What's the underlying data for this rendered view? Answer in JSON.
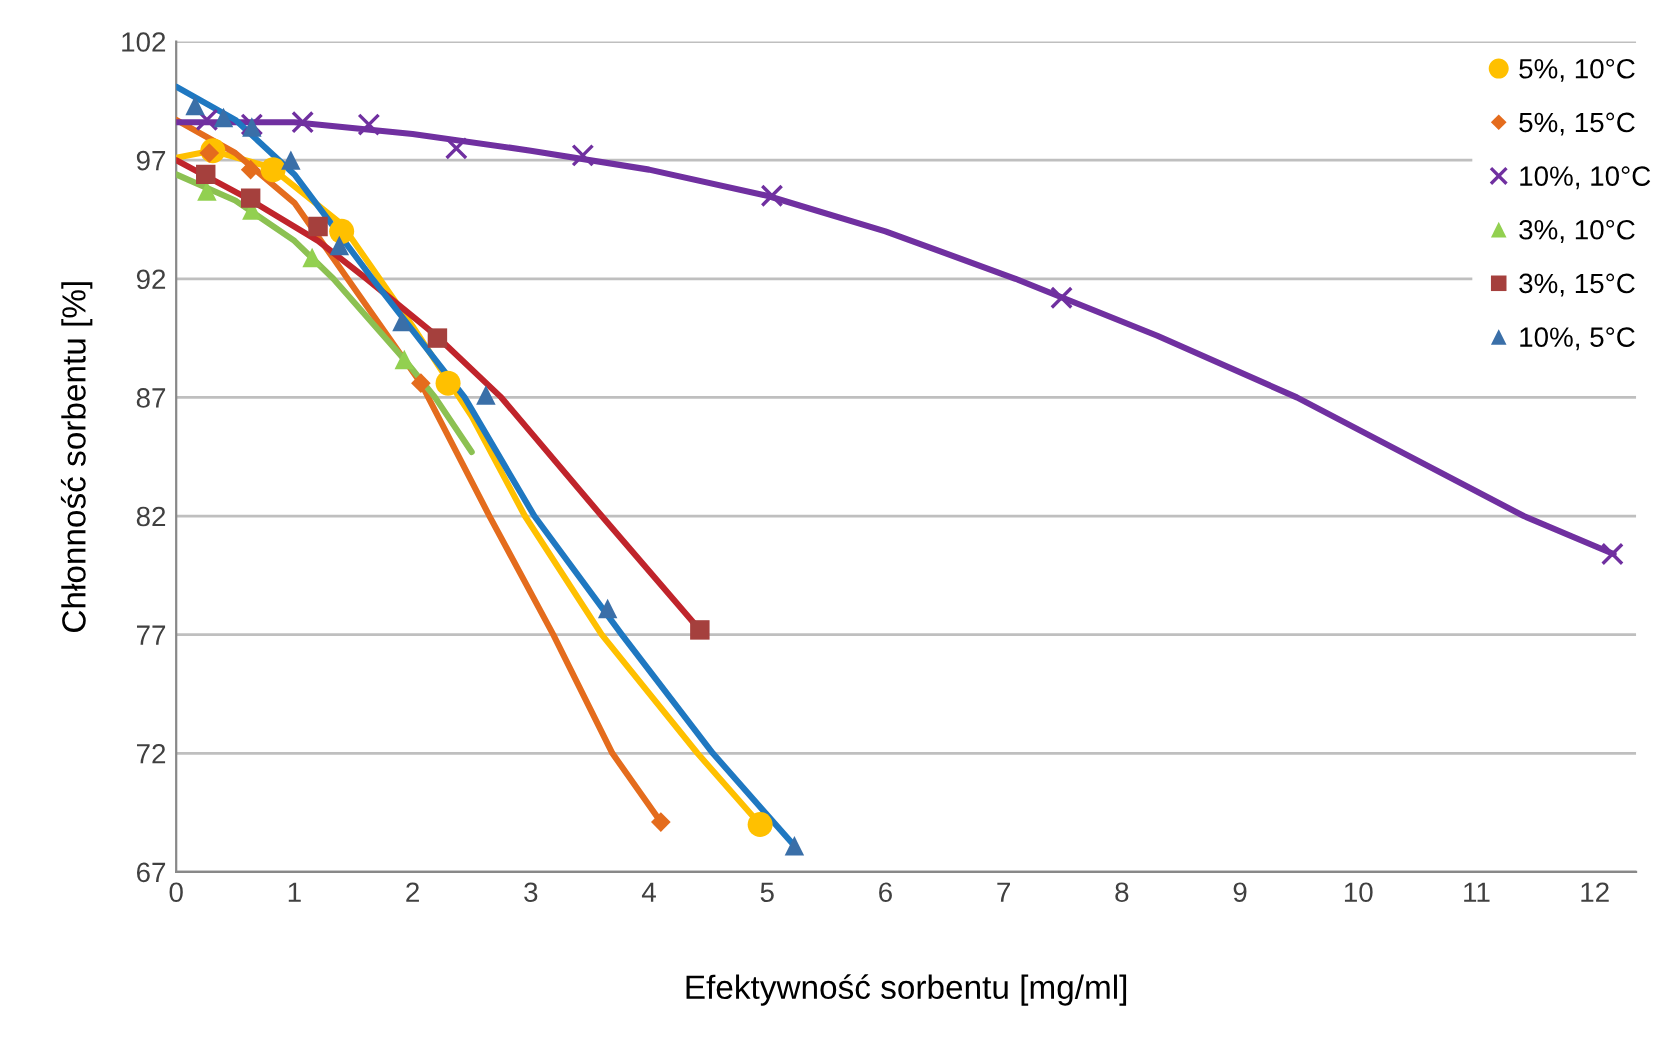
{
  "chart_data": {
    "type": "scatter",
    "xlabel": "Efektywność sorbentu [mg/ml]",
    "ylabel": "Chłonność sorbentu [%]",
    "xlim": [
      0,
      12.35
    ],
    "xticks": [
      0,
      1,
      2,
      3,
      4,
      5,
      6,
      7,
      8,
      9,
      10,
      11,
      12
    ],
    "ylim": [
      67,
      102
    ],
    "yticks": [
      67,
      72,
      77,
      82,
      87,
      92,
      97,
      102
    ],
    "grid": "y",
    "legend": "top right",
    "series": [
      {
        "name": "5%, 10°C",
        "marker": "circle",
        "color": "#ffc000",
        "x": [
          0.31,
          0.82,
          1.4,
          2.3,
          4.94
        ],
        "values": [
          97.4,
          96.6,
          94.0,
          87.6,
          69.0
        ]
      },
      {
        "name": "5%, 15°C",
        "marker": "diamond",
        "color": "#e46c1d",
        "x": [
          0.28,
          0.63,
          2.07,
          4.1
        ],
        "values": [
          97.3,
          96.6,
          87.6,
          69.1
        ]
      },
      {
        "name": "10%, 10°C",
        "marker": "cross",
        "color": "#7030a0",
        "x": [
          0.26,
          0.64,
          1.07,
          1.63,
          2.37,
          3.44,
          5.04,
          7.49,
          12.15
        ],
        "values": [
          98.7,
          98.5,
          98.6,
          98.5,
          97.5,
          97.2,
          95.5,
          91.2,
          80.4
        ]
      },
      {
        "name": "3%, 10°C",
        "marker": "triangle",
        "color": "#92d050",
        "x": [
          0.26,
          0.64,
          1.15,
          1.93
        ],
        "values": [
          95.7,
          94.9,
          92.9,
          88.6
        ]
      },
      {
        "name": "3%, 15°C",
        "marker": "square",
        "color": "#a5403d",
        "x": [
          0.25,
          0.63,
          1.2,
          2.21,
          4.43
        ],
        "values": [
          96.4,
          95.4,
          94.2,
          89.5,
          77.2
        ]
      },
      {
        "name": "10%, 5°C",
        "marker": "triangle",
        "color": "#3a6fa8",
        "x": [
          0.16,
          0.4,
          0.64,
          0.97,
          1.38,
          1.91,
          2.62,
          3.65,
          5.23
        ],
        "values": [
          99.3,
          98.8,
          98.4,
          97.0,
          93.4,
          90.2,
          87.1,
          78.1,
          68.1
        ]
      },
      {
        "type": "line",
        "color": "#ffc000",
        "x": [
          0,
          0.3,
          0.8,
          1.4,
          2.0,
          2.5,
          2.95,
          3.6,
          4.41,
          4.94
        ],
        "values": [
          97.1,
          97.4,
          96.7,
          94.3,
          90.0,
          86.2,
          82,
          77,
          72,
          69.0
        ]
      },
      {
        "type": "line",
        "color": "#e46c1d",
        "x": [
          0,
          0.5,
          1,
          1.45,
          2.07,
          2.65,
          3.19,
          3.69,
          4.1
        ],
        "values": [
          98.7,
          97.3,
          95.2,
          92,
          87.6,
          82,
          77,
          72,
          69.1
        ]
      },
      {
        "type": "line",
        "color": "#7030a0",
        "x": [
          0,
          1,
          2,
          3,
          4,
          5,
          6,
          7.1,
          8.3,
          9.48,
          11.4,
          12.16
        ],
        "values": [
          98.6,
          98.6,
          98.1,
          97.4,
          96.6,
          95.5,
          94.0,
          92,
          89.6,
          87,
          82,
          80.4
        ]
      },
      {
        "type": "line",
        "color": "#8cc152",
        "x": [
          0,
          0.5,
          1.0,
          1.33,
          1.93,
          2.19,
          2.5
        ],
        "values": [
          96.4,
          95.3,
          93.6,
          92,
          88.6,
          87,
          84.7
        ]
      },
      {
        "type": "line",
        "color": "#c0242b",
        "x": [
          0,
          0.6,
          1.2,
          1.61,
          2.2,
          2.75,
          3.6,
          4.43
        ],
        "values": [
          97.0,
          95.4,
          93.6,
          92,
          89.6,
          87,
          82,
          77.2
        ]
      },
      {
        "type": "line",
        "color": "#1f78c1",
        "x": [
          0,
          0.5,
          1,
          1.66,
          2.44,
          3.03,
          3.77,
          4.54,
          5.23
        ],
        "values": [
          100.1,
          98.7,
          96.4,
          92,
          87,
          82,
          77,
          72,
          68.1
        ]
      }
    ]
  }
}
